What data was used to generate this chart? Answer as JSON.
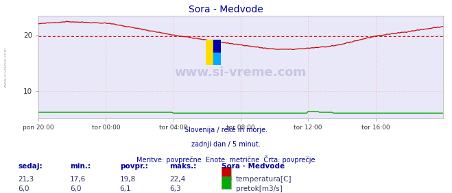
{
  "title": "Sora - Medvode",
  "title_color": "#000099",
  "bg_color": "#ffffff",
  "plot_bg_color": "#e8e8f8",
  "grid_color": "#ffaaaa",
  "x_tick_labels": [
    "pon 20:00",
    "tor 00:00",
    "tor 04:00",
    "tor 08:00",
    "tor 12:00",
    "tor 16:00"
  ],
  "x_tick_positions": [
    0,
    48,
    96,
    144,
    192,
    240
  ],
  "y_ticks": [
    10,
    20
  ],
  "y_lim": [
    5.0,
    23.5
  ],
  "x_lim": [
    0,
    288
  ],
  "avg_line_value": 19.8,
  "avg_line_color": "#cc0000",
  "watermark_text": "www.si-vreme.com",
  "footer_line1": "Slovenija / reke in morje.",
  "footer_line2": "zadnji dan / 5 minut.",
  "footer_line3": "Meritve: povprečne  Enote: metrične  Črta: povprečje",
  "footer_color": "#000099",
  "sidebar_text": "www.si-vreme.com",
  "sidebar_color": "#aaaacc",
  "legend_title": "Sora - Medvode",
  "legend_color": "#000099",
  "temp_color": "#cc0000",
  "flow_color": "#00aa00",
  "temp_label": "temperatura[C]",
  "flow_label": "pretok[m3/s]",
  "table_headers": [
    "sedaj:",
    "min.:",
    "povpr.:",
    "maks.:"
  ],
  "table_header_color": "#000099",
  "temp_sedaj": "21,3",
  "temp_min": "17,6",
  "temp_povpr": "19,8",
  "temp_maks": "22,4",
  "flow_sedaj": "6,0",
  "flow_min": "6,0",
  "flow_povpr": "6,1",
  "flow_maks": "6,3",
  "table_value_color": "#333366"
}
